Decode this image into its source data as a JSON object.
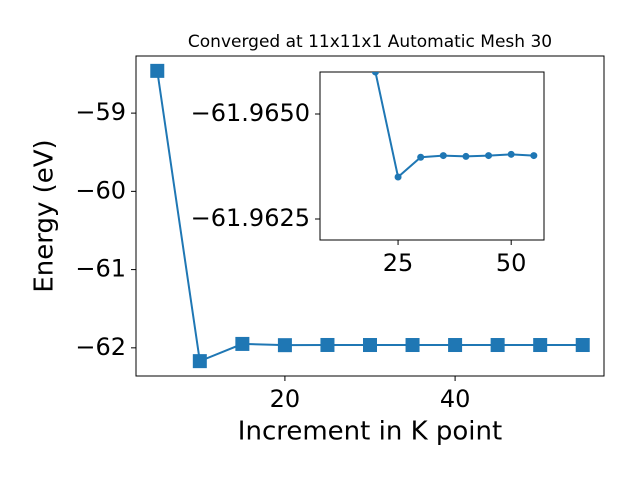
{
  "chart_data": [
    {
      "type": "line",
      "title": "Converged at 11x11x1 Automatic Mesh 30",
      "x_label": "Increment in K point",
      "y_label": "Energy (eV)",
      "x": [
        5,
        10,
        15,
        20,
        25,
        30,
        35,
        40,
        45,
        50,
        55
      ],
      "series": [
        {
          "color": "#1f77b4",
          "marker": "square",
          "values": [
            -58.46,
            -62.17,
            -61.95,
            -61.966,
            -61.9635,
            -61.964,
            -61.964,
            -61.964,
            -61.964,
            -61.964,
            -61.964
          ]
        }
      ],
      "xlim": [
        2.5,
        57.5
      ],
      "ylim": [
        -62.36,
        -58.27
      ],
      "xticks": [
        20,
        40
      ],
      "yticks": [
        {
          "value": -59,
          "label": "−59"
        },
        {
          "value": -60,
          "label": "−60"
        },
        {
          "value": -61,
          "label": "−61"
        },
        {
          "value": -62,
          "label": "−62"
        }
      ]
    },
    {
      "type": "line",
      "x": [
        20,
        25,
        30,
        35,
        40,
        45,
        50,
        55
      ],
      "series": [
        {
          "color": "#1f77b4",
          "marker": "circle",
          "values": [
            -61.966,
            -61.9635,
            -61.96397,
            -61.96401,
            -61.96399,
            -61.96401,
            -61.96404,
            -61.96401
          ]
        }
      ],
      "xlim": [
        7.75,
        57.25
      ],
      "ylim": [
        -61.962,
        -61.966
      ],
      "xticks": [
        25,
        50
      ],
      "yticks": [
        {
          "value": -61.965,
          "label": "−61.9650"
        },
        {
          "value": -61.9625,
          "label": "−61.9625"
        }
      ]
    }
  ]
}
